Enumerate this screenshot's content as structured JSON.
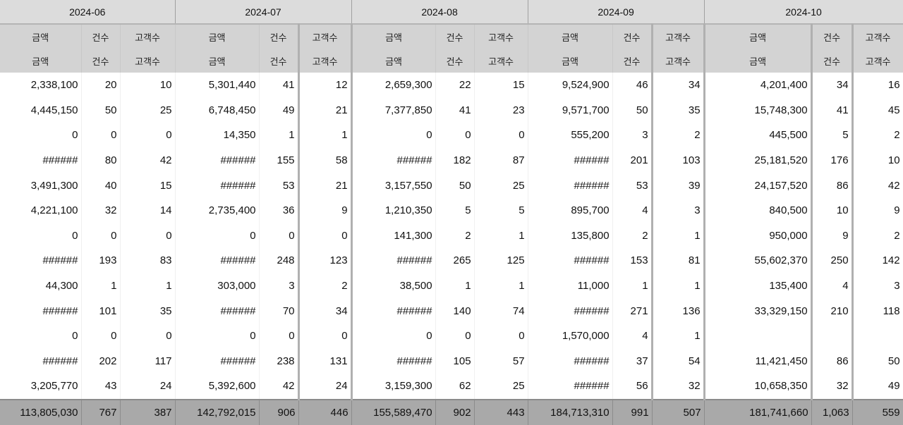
{
  "months": [
    "2024-06",
    "2024-07",
    "2024-08",
    "2024-09",
    "2024-10"
  ],
  "column_headers": [
    "금액",
    "건수",
    "고객수"
  ],
  "rows": [
    [
      "2,338,100",
      "20",
      "10",
      "5,301,440",
      "41",
      "12",
      "2,659,300",
      "22",
      "15",
      "9,524,900",
      "46",
      "34",
      "4,201,400",
      "34",
      "16"
    ],
    [
      "4,445,150",
      "50",
      "25",
      "6,748,450",
      "49",
      "21",
      "7,377,850",
      "41",
      "23",
      "9,571,700",
      "50",
      "35",
      "15,748,300",
      "41",
      "45"
    ],
    [
      "0",
      "0",
      "0",
      "14,350",
      "1",
      "1",
      "0",
      "0",
      "0",
      "555,200",
      "3",
      "2",
      "445,500",
      "5",
      "2"
    ],
    [
      "######",
      "80",
      "42",
      "######",
      "155",
      "58",
      "######",
      "182",
      "87",
      "######",
      "201",
      "103",
      "25,181,520",
      "176",
      "10"
    ],
    [
      "3,491,300",
      "40",
      "15",
      "######",
      "53",
      "21",
      "3,157,550",
      "50",
      "25",
      "######",
      "53",
      "39",
      "24,157,520",
      "86",
      "42"
    ],
    [
      "4,221,100",
      "32",
      "14",
      "2,735,400",
      "36",
      "9",
      "1,210,350",
      "5",
      "5",
      "895,700",
      "4",
      "3",
      "840,500",
      "10",
      "9"
    ],
    [
      "0",
      "0",
      "0",
      "0",
      "0",
      "0",
      "141,300",
      "2",
      "1",
      "135,800",
      "2",
      "1",
      "950,000",
      "9",
      "2"
    ],
    [
      "######",
      "193",
      "83",
      "######",
      "248",
      "123",
      "######",
      "265",
      "125",
      "######",
      "153",
      "81",
      "55,602,370",
      "250",
      "142"
    ],
    [
      "44,300",
      "1",
      "1",
      "303,000",
      "3",
      "2",
      "38,500",
      "1",
      "1",
      "11,000",
      "1",
      "1",
      "135,400",
      "4",
      "3"
    ],
    [
      "######",
      "101",
      "35",
      "######",
      "70",
      "34",
      "######",
      "140",
      "74",
      "######",
      "271",
      "136",
      "33,329,150",
      "210",
      "118"
    ],
    [
      "0",
      "0",
      "0",
      "0",
      "0",
      "0",
      "0",
      "0",
      "0",
      "1,570,000",
      "4",
      "1",
      "",
      "",
      ""
    ],
    [
      "######",
      "202",
      "117",
      "######",
      "238",
      "131",
      "######",
      "105",
      "57",
      "######",
      "37",
      "54",
      "11,421,450",
      "86",
      "50"
    ],
    [
      "3,205,770",
      "43",
      "24",
      "5,392,600",
      "42",
      "24",
      "3,159,300",
      "62",
      "25",
      "######",
      "56",
      "32",
      "10,658,350",
      "32",
      "49"
    ]
  ],
  "totals": [
    "113,805,030",
    "767",
    "387",
    "142,792,015",
    "906",
    "446",
    "155,589,470",
    "902",
    "443",
    "184,713,310",
    "991",
    "507",
    "181,741,660",
    "1,063",
    "559"
  ]
}
